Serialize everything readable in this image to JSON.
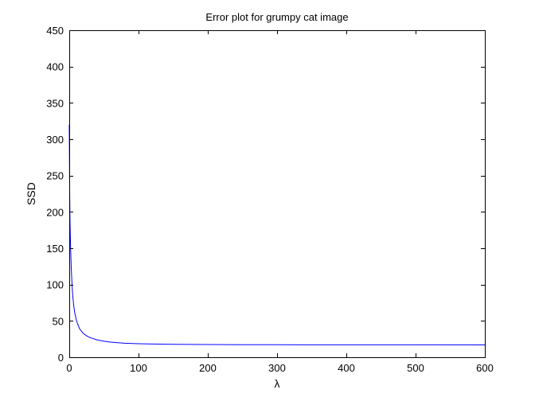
{
  "chart_data": {
    "type": "line",
    "title": "Error plot for grumpy cat image",
    "xlabel": "λ",
    "ylabel": "SSD",
    "xlim": [
      0,
      600
    ],
    "ylim": [
      0,
      450
    ],
    "xticks": [
      0,
      100,
      200,
      300,
      400,
      500,
      600
    ],
    "yticks": [
      0,
      50,
      100,
      150,
      200,
      250,
      300,
      350,
      400,
      450
    ],
    "grid": false,
    "legend": "none",
    "series": [
      {
        "color": "#0000ff",
        "x": [
          0,
          0.5,
          1,
          2,
          3,
          4,
          5,
          6,
          7,
          8,
          10,
          12,
          15,
          20,
          25,
          30,
          40,
          50,
          60,
          70,
          80,
          100,
          120,
          150,
          200,
          250,
          300,
          400,
          500,
          600
        ],
        "y": [
          320,
          240,
          190,
          148,
          120,
          100,
          85,
          75,
          67,
          61,
          52,
          46,
          39,
          33,
          29.5,
          27,
          24,
          22,
          20.8,
          20,
          19.3,
          18.6,
          18.2,
          17.8,
          17.5,
          17.3,
          17.2,
          17.1,
          17.05,
          17
        ]
      }
    ]
  }
}
